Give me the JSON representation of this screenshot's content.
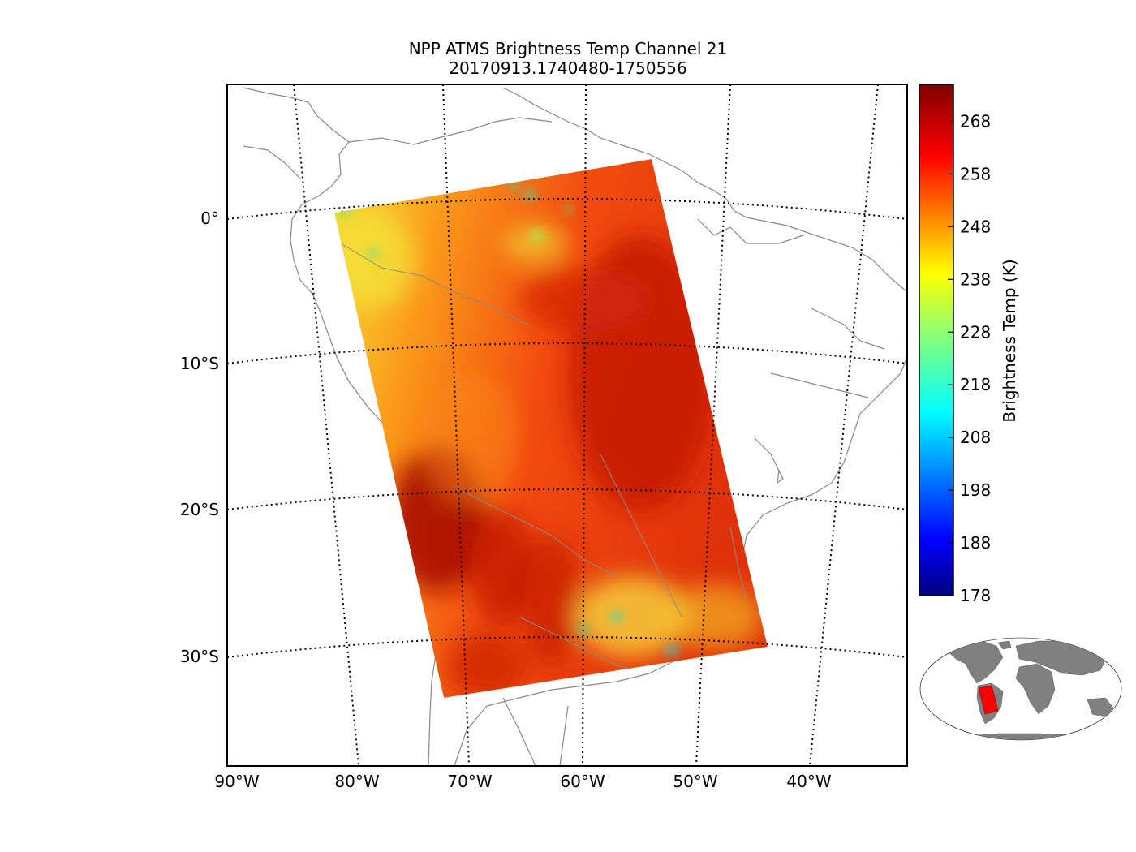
{
  "figure": {
    "title_line1": "NPP ATMS Brightness Temp Channel 21",
    "title_line2": "20170913.1740480-1750556"
  },
  "map": {
    "lat_labels": [
      "0°",
      "10°S",
      "20°S",
      "30°S"
    ],
    "lon_labels": [
      "90°W",
      "80°W",
      "70°W",
      "60°W",
      "50°W",
      "40°W"
    ],
    "coastline_color": "#888888",
    "graticule_style": "dotted"
  },
  "swath": {
    "description": "ATMS granule swath over South America",
    "hot_color": "#b00000",
    "warm_color": "#ff6a00",
    "cool_color": "#f5e63a"
  },
  "colorbar": {
    "label": "Brightness Temp (K)",
    "ticks": [
      "268",
      "258",
      "248",
      "238",
      "228",
      "218",
      "208",
      "198",
      "188",
      "178"
    ],
    "min": 178,
    "max": 275,
    "colormap": "jet"
  },
  "inset": {
    "land_color": "#808080",
    "highlight_color": "#ff0000"
  }
}
